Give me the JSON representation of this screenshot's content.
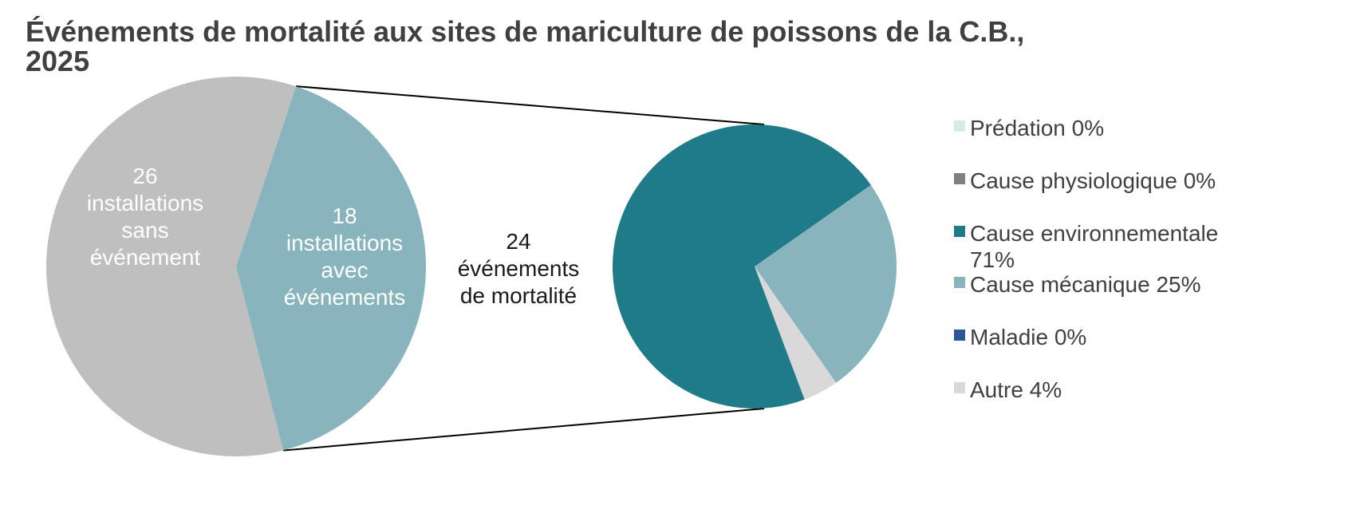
{
  "chart_data": [
    {
      "type": "pie",
      "title_lines": [
        "Événements de mortalité aux sites de mariculture de poissons de la C.B.,",
        "2025"
      ],
      "slices": [
        {
          "label_lines": [
            "26",
            "installations",
            "sans",
            "événement"
          ],
          "value": 26,
          "color": "#bfbfbf"
        },
        {
          "label_lines": [
            "18",
            "installations",
            "avec",
            "événements"
          ],
          "value": 18,
          "color": "#88b5bd"
        }
      ]
    },
    {
      "type": "pie",
      "center_label_lines": [
        "24",
        "événements",
        "de mortalité"
      ],
      "slices": [
        {
          "name": "Prédation",
          "value": 0,
          "legend_lines": [
            "Prédation 0%"
          ],
          "color": "#d6ebe6"
        },
        {
          "name": "Cause physiologique",
          "value": 0,
          "legend_lines": [
            "Cause physiologique 0%"
          ],
          "color": "#808080"
        },
        {
          "name": "Cause environnementale",
          "value": 71,
          "legend_lines": [
            "Cause environnementale",
            "71%"
          ],
          "color": "#1f7b87"
        },
        {
          "name": "Cause mécanique",
          "value": 25,
          "legend_lines": [
            "Cause mécanique 25%"
          ],
          "color": "#88b5bd"
        },
        {
          "name": "Maladie",
          "value": 0,
          "legend_lines": [
            "Maladie 0%"
          ],
          "color": "#2e5597"
        },
        {
          "name": "Autre",
          "value": 4,
          "legend_lines": [
            "Autre 4%"
          ],
          "color": "#d9d9d9"
        }
      ],
      "legend_position": "right"
    }
  ]
}
